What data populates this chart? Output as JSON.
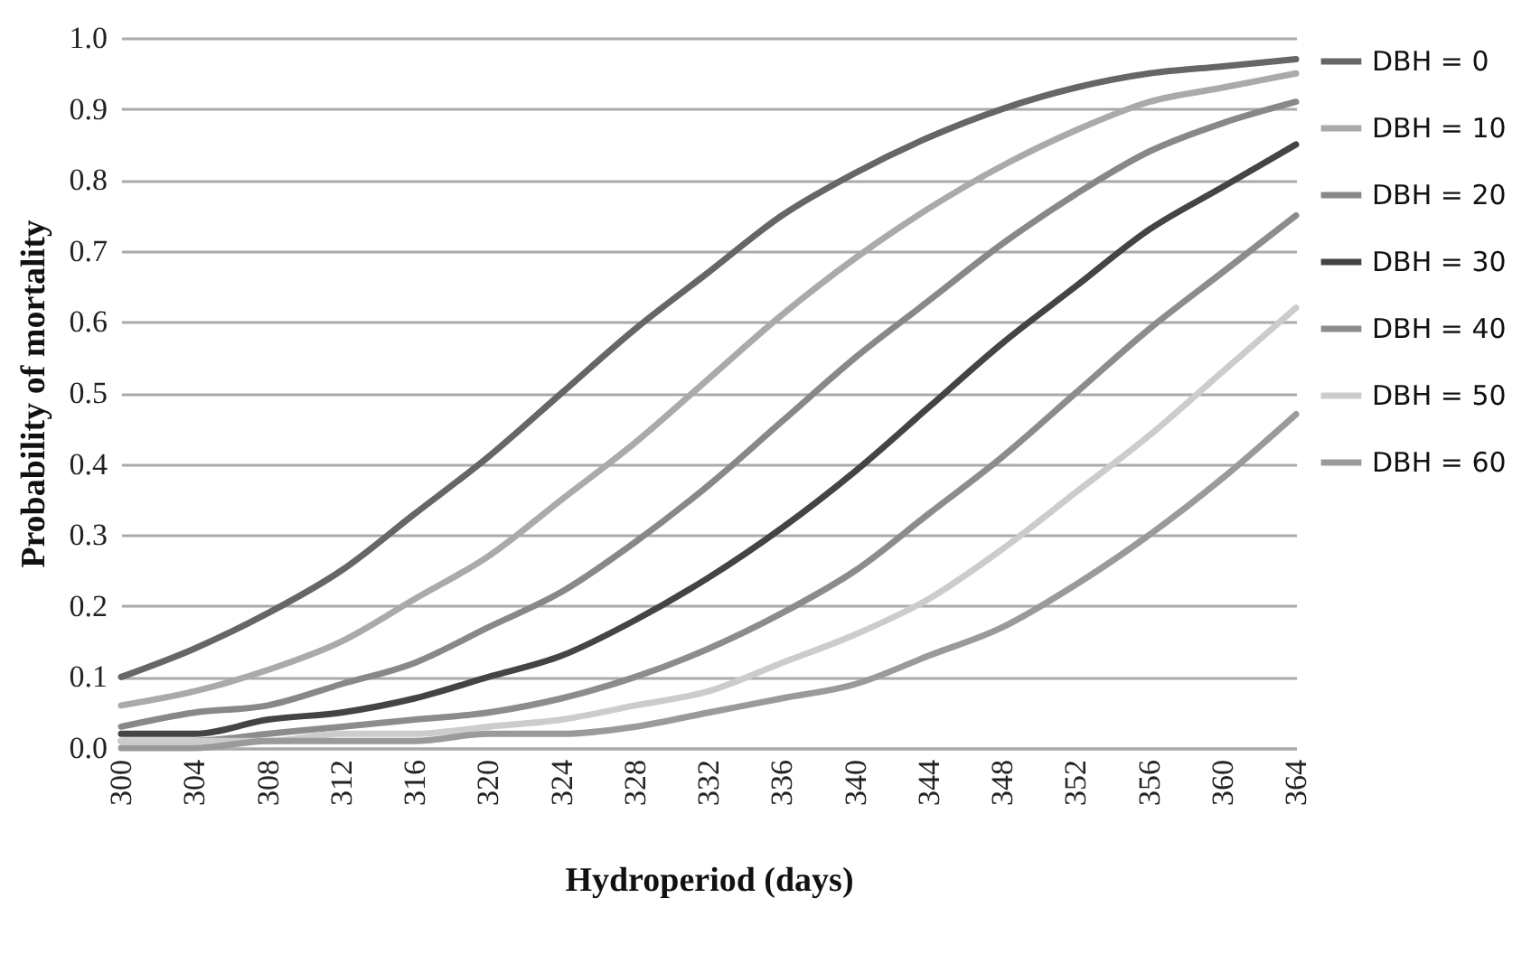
{
  "chart_data": {
    "type": "line",
    "xlabel": "Hydroperiod (days)",
    "ylabel": "Probability of mortality",
    "x": [
      300,
      304,
      308,
      312,
      316,
      320,
      324,
      328,
      332,
      336,
      340,
      344,
      348,
      352,
      356,
      360,
      364
    ],
    "xlim": [
      300,
      364
    ],
    "xticks": [
      300,
      304,
      308,
      312,
      316,
      320,
      324,
      328,
      332,
      336,
      340,
      344,
      348,
      352,
      356,
      360,
      364
    ],
    "ylim": [
      0,
      1
    ],
    "yticks": [
      {
        "value": 0,
        "label": "0.0"
      },
      {
        "value": 0.1,
        "label": "0.1"
      },
      {
        "value": 0.2,
        "label": "0.2"
      },
      {
        "value": 0.3,
        "label": "0.3"
      },
      {
        "value": 0.4,
        "label": "0.4"
      },
      {
        "value": 0.5,
        "label": "0.5"
      },
      {
        "value": 0.6,
        "label": "0.6"
      },
      {
        "value": 0.7,
        "label": "0.7"
      },
      {
        "value": 0.8,
        "label": "0.8"
      },
      {
        "value": 0.9,
        "label": "0.9"
      },
      {
        "value": 1,
        "label": "1.0"
      }
    ],
    "grid": "y",
    "legend": "right",
    "marker": "none",
    "line_style": "solid",
    "series": [
      {
        "name": "DBH = 0",
        "color": "#666666",
        "values": [
          0.1,
          0.14,
          0.19,
          0.25,
          0.33,
          0.41,
          0.5,
          0.59,
          0.67,
          0.75,
          0.81,
          0.86,
          0.9,
          0.93,
          0.95,
          0.96,
          0.97
        ]
      },
      {
        "name": "DBH = 10",
        "color": "#aaaaaa",
        "values": [
          0.06,
          0.08,
          0.11,
          0.15,
          0.21,
          0.27,
          0.35,
          0.43,
          0.52,
          0.61,
          0.69,
          0.76,
          0.82,
          0.87,
          0.91,
          0.93,
          0.95
        ]
      },
      {
        "name": "DBH = 20",
        "color": "#888888",
        "values": [
          0.03,
          0.05,
          0.06,
          0.09,
          0.12,
          0.17,
          0.22,
          0.29,
          0.37,
          0.46,
          0.55,
          0.63,
          0.71,
          0.78,
          0.84,
          0.88,
          0.91
        ]
      },
      {
        "name": "DBH = 30",
        "color": "#444444",
        "values": [
          0.02,
          0.02,
          0.04,
          0.05,
          0.07,
          0.1,
          0.13,
          0.18,
          0.24,
          0.31,
          0.39,
          0.48,
          0.57,
          0.65,
          0.73,
          0.79,
          0.85
        ]
      },
      {
        "name": "DBH = 40",
        "color": "#8c8c8c",
        "values": [
          0.01,
          0.01,
          0.02,
          0.03,
          0.04,
          0.05,
          0.07,
          0.1,
          0.14,
          0.19,
          0.25,
          0.33,
          0.41,
          0.5,
          0.59,
          0.67,
          0.75
        ]
      },
      {
        "name": "DBH = 50",
        "color": "#cccccc",
        "values": [
          0.01,
          0.01,
          0.01,
          0.02,
          0.02,
          0.03,
          0.04,
          0.06,
          0.08,
          0.12,
          0.16,
          0.21,
          0.28,
          0.36,
          0.44,
          0.53,
          0.62
        ]
      },
      {
        "name": "DBH = 60",
        "color": "#9a9a9a",
        "values": [
          0.0,
          0.0,
          0.01,
          0.01,
          0.01,
          0.02,
          0.02,
          0.03,
          0.05,
          0.07,
          0.09,
          0.13,
          0.17,
          0.23,
          0.3,
          0.38,
          0.47
        ]
      }
    ]
  }
}
